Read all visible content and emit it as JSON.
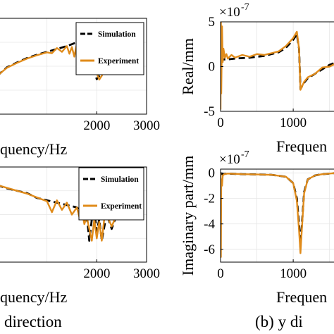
{
  "figure": {
    "left_caption": "direction",
    "right_caption": "(b) y di"
  },
  "chart_data": [
    {
      "id": "left-top",
      "type": "line",
      "xlabel": "quency/Hz",
      "ylabel": "",
      "xlim": [
        0,
        3000
      ],
      "ylim": [
        -1,
        1
      ],
      "xticks": [
        2000,
        3000
      ],
      "yticks": [],
      "grid": true,
      "legend": {
        "placement": "top-right",
        "entries": [
          "Simulation",
          "Experiment"
        ]
      },
      "series": [
        {
          "name": "Simulation",
          "color": "#000000",
          "dash": true,
          "x": [
            0,
            200,
            400,
            600,
            800,
            1000,
            1200,
            1400,
            1600,
            1750,
            1800,
            1850,
            1900,
            1950,
            2000,
            2050,
            2100,
            2200,
            2300,
            2400
          ],
          "y": [
            -0.2,
            -0.02,
            0.08,
            0.17,
            0.24,
            0.3,
            0.36,
            0.42,
            0.5,
            0.6,
            0.42,
            0.3,
            0.12,
            -0.1,
            -0.27,
            -0.2,
            -0.14,
            -0.07,
            -0.01,
            0.06
          ]
        },
        {
          "name": "Experiment",
          "color": "#e08b1a",
          "dash": false,
          "x": [
            0,
            200,
            400,
            600,
            800,
            1000,
            1100,
            1200,
            1300,
            1400,
            1450,
            1500,
            1550,
            1600,
            1650,
            1700,
            1750,
            1800,
            1850,
            1900,
            1950,
            2000,
            2050,
            2100,
            2150,
            2200,
            2300,
            2400
          ],
          "y": [
            -0.2,
            -0.03,
            0.07,
            0.16,
            0.23,
            0.29,
            0.27,
            0.38,
            0.3,
            0.42,
            0.26,
            0.4,
            0.2,
            0.47,
            0.32,
            0.5,
            0.35,
            0.22,
            0.38,
            0.12,
            -0.05,
            -0.15,
            -0.28,
            -0.2,
            -0.1,
            -0.05,
            0.0,
            0.06
          ]
        }
      ]
    },
    {
      "id": "left-bottom",
      "type": "line",
      "xlabel": "quency/Hz",
      "ylabel": "",
      "xlim": [
        0,
        3000
      ],
      "ylim": [
        -1,
        1
      ],
      "xticks": [
        2000,
        3000
      ],
      "yticks": [],
      "grid": true,
      "legend": {
        "placement": "top-right",
        "entries": [
          "Simulation",
          "Experiment"
        ]
      },
      "series": [
        {
          "name": "Simulation",
          "color": "#000000",
          "dash": true,
          "x": [
            0,
            200,
            400,
            600,
            800,
            1000,
            1200,
            1400,
            1600,
            1700,
            1750,
            1800,
            1850,
            1900,
            1950,
            2000,
            2050,
            2100,
            2200,
            2300,
            2400
          ],
          "y": [
            0.62,
            0.55,
            0.5,
            0.45,
            0.35,
            0.3,
            0.25,
            0.2,
            0.15,
            0.05,
            -0.15,
            0.0,
            -0.55,
            -0.1,
            0.05,
            -0.35,
            -0.1,
            -0.55,
            0.02,
            -0.3,
            0.0
          ]
        },
        {
          "name": "Experiment",
          "color": "#e08b1a",
          "dash": false,
          "x": [
            0,
            200,
            400,
            600,
            800,
            1000,
            1100,
            1200,
            1300,
            1400,
            1500,
            1600,
            1650,
            1700,
            1750,
            1800,
            1850,
            1900,
            1950,
            2000,
            2050,
            2100,
            2150,
            2200,
            2300,
            2400
          ],
          "y": [
            0.62,
            0.56,
            0.5,
            0.44,
            0.36,
            0.28,
            0.05,
            0.3,
            0.1,
            0.25,
            0.0,
            0.15,
            -0.05,
            0.1,
            -0.2,
            -0.05,
            -0.3,
            -0.55,
            -0.1,
            -0.5,
            -0.15,
            -0.55,
            -0.1,
            0.0,
            -0.25,
            0.0
          ]
        }
      ]
    },
    {
      "id": "right-top",
      "type": "line",
      "ylabel": "Real/mm",
      "xlabel": "Frequen",
      "exponent": "×10",
      "exponent_power": "-7",
      "xlim": [
        0,
        1600
      ],
      "ylim": [
        -5,
        5
      ],
      "xticks": [
        0,
        1000
      ],
      "yticks": [
        5,
        0,
        -5
      ],
      "grid": true,
      "series": [
        {
          "name": "Simulation",
          "color": "#000000",
          "dash": true,
          "x": [
            0,
            20,
            50,
            100,
            200,
            400,
            600,
            800,
            900,
            1000,
            1050,
            1080,
            1100,
            1150,
            1200,
            1300,
            1400,
            1500,
            1600
          ],
          "y": [
            0.5,
            0.8,
            0.8,
            0.8,
            0.9,
            1.0,
            1.2,
            1.6,
            2.1,
            3.0,
            3.6,
            2.0,
            -2.5,
            -1.8,
            -1.3,
            -0.8,
            -0.3,
            0.2,
            0.5
          ]
        },
        {
          "name": "Experiment",
          "color": "#e08b1a",
          "dash": false,
          "x": [
            0,
            5,
            10,
            20,
            30,
            40,
            60,
            80,
            100,
            150,
            200,
            300,
            400,
            500,
            600,
            700,
            800,
            900,
            1000,
            1050,
            1080,
            1100,
            1150,
            1200,
            1300,
            1400,
            1500,
            1600
          ],
          "y": [
            -4.8,
            5.0,
            -3.0,
            4.5,
            0.5,
            2.0,
            1.0,
            1.4,
            0.9,
            1.3,
            1.0,
            1.3,
            1.1,
            1.4,
            1.3,
            1.5,
            1.7,
            2.3,
            3.2,
            3.9,
            2.0,
            -2.6,
            -1.7,
            -1.2,
            -0.8,
            -0.1,
            0.0,
            0.4
          ]
        }
      ]
    },
    {
      "id": "right-bottom",
      "type": "line",
      "ylabel": "Imaginary part/mm",
      "xlabel": "Frequen",
      "exponent": "×10",
      "exponent_power": "-7",
      "xlim": [
        0,
        1600
      ],
      "ylim": [
        -7,
        0.3
      ],
      "xticks": [
        0,
        1000
      ],
      "yticks": [
        0,
        -2,
        -4,
        -6
      ],
      "grid": true,
      "series": [
        {
          "name": "Simulation",
          "color": "#000000",
          "dash": true,
          "x": [
            0,
            20,
            100,
            300,
            500,
            700,
            900,
            1000,
            1050,
            1080,
            1100,
            1120,
            1150,
            1200,
            1300,
            1400,
            1500,
            1600
          ],
          "y": [
            0,
            -0.1,
            -0.05,
            -0.1,
            -0.12,
            -0.15,
            -0.3,
            -0.8,
            -2.0,
            -4.0,
            -5.9,
            -4.0,
            -1.5,
            -0.5,
            -0.2,
            -0.1,
            -0.05,
            0
          ]
        },
        {
          "name": "Experiment",
          "color": "#e08b1a",
          "dash": false,
          "x": [
            0,
            5,
            10,
            20,
            30,
            50,
            100,
            300,
            500,
            700,
            900,
            1000,
            1050,
            1080,
            1100,
            1120,
            1150,
            1200,
            1300,
            1400,
            1500,
            1600
          ],
          "y": [
            0,
            -6.6,
            -0.5,
            -1.0,
            -0.2,
            -0.1,
            -0.05,
            -0.1,
            -0.12,
            -0.15,
            -0.3,
            -0.8,
            -2.2,
            -4.5,
            -6.3,
            -4.3,
            -1.6,
            -0.5,
            -0.2,
            -0.1,
            -0.05,
            0
          ]
        }
      ]
    }
  ]
}
